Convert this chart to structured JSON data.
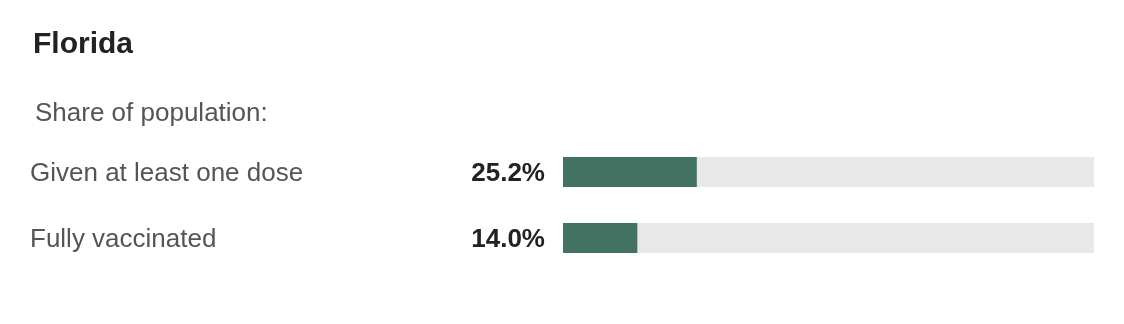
{
  "chart_data": {
    "type": "bar",
    "orientation": "horizontal",
    "title": "Florida",
    "subtitle": "Share of population:",
    "categories": [
      "Given at least one dose",
      "Fully vaccinated"
    ],
    "values": [
      25.2,
      14.0
    ],
    "color": "#427262",
    "value_labels": [
      "25.2%",
      "14.0%"
    ],
    "xlim": [
      0,
      100
    ],
    "tick_labels": "y"
  }
}
